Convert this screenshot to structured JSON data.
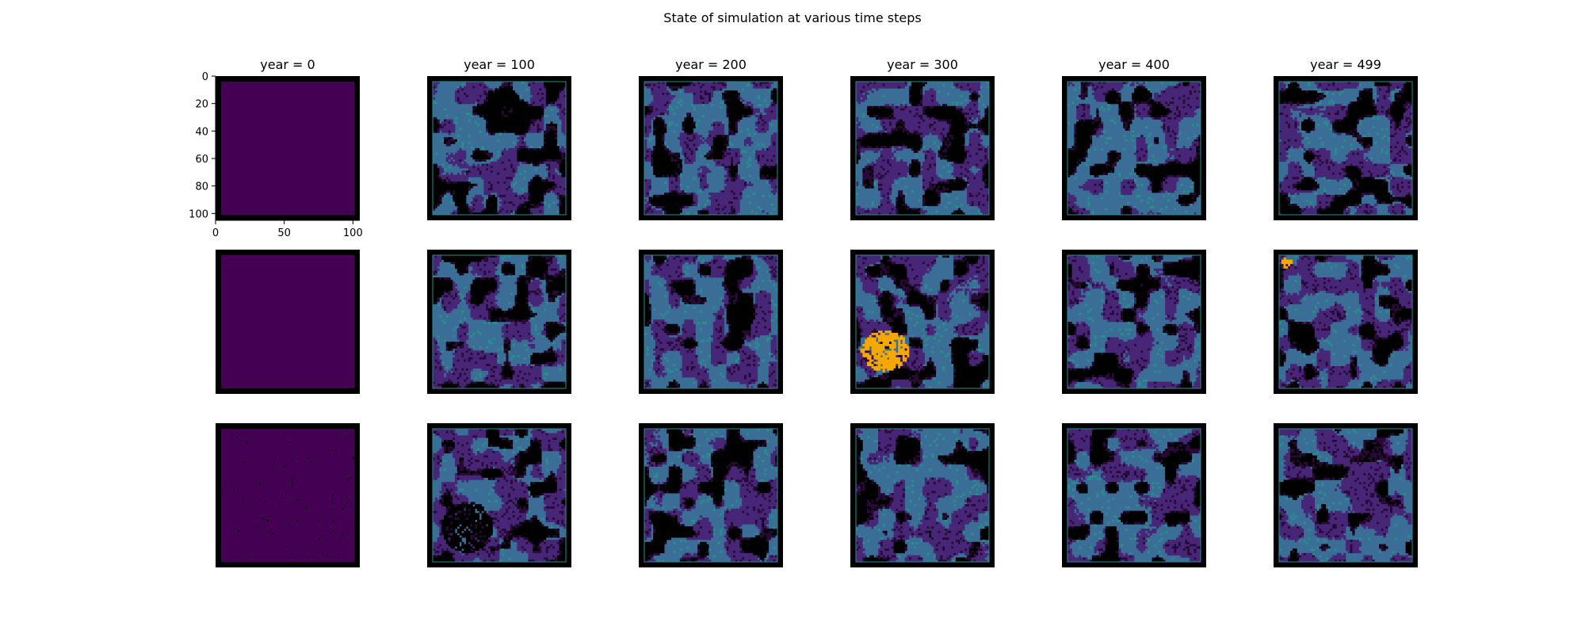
{
  "chart_data": {
    "type": "heatmap",
    "title": "State of simulation at various time steps",
    "panel_titles": [
      "year = 0",
      "year = 100",
      "year = 200",
      "year = 300",
      "year = 400",
      "year = 499"
    ],
    "years": [
      0,
      100,
      200,
      300,
      400,
      499
    ],
    "rows": 3,
    "grid_size": 105,
    "axes": {
      "x_ticks": [
        "0",
        "50",
        "100"
      ],
      "y_ticks": [
        "0",
        "20",
        "40",
        "60",
        "80",
        "100"
      ],
      "xlim": [
        0,
        105
      ],
      "ylim": [
        105,
        0
      ]
    },
    "colors": {
      "border": "#000000",
      "empty": "#440154",
      "blue": "#3b6e96",
      "purple": "#482677",
      "dark": "#2a0838",
      "black": "#000000",
      "orange": "#f6a800",
      "teal": "#2a8c8c"
    },
    "panels": [
      {
        "row": 0,
        "year": 0,
        "state": "uniform"
      },
      {
        "row": 0,
        "year": 100,
        "state": "mixed"
      },
      {
        "row": 0,
        "year": 200,
        "state": "mixed"
      },
      {
        "row": 0,
        "year": 300,
        "state": "mixed"
      },
      {
        "row": 0,
        "year": 400,
        "state": "mixed"
      },
      {
        "row": 0,
        "year": 499,
        "state": "mixed"
      },
      {
        "row": 1,
        "year": 0,
        "state": "uniform"
      },
      {
        "row": 1,
        "year": 100,
        "state": "mixed"
      },
      {
        "row": 1,
        "year": 200,
        "state": "mixed"
      },
      {
        "row": 1,
        "year": 300,
        "state": "mixed",
        "highlight": "orange-patch-lower-left"
      },
      {
        "row": 1,
        "year": 400,
        "state": "mixed"
      },
      {
        "row": 1,
        "year": 499,
        "state": "mixed",
        "highlight": "orange-patch-top-left-small"
      },
      {
        "row": 2,
        "year": 0,
        "state": "uniform-speckled"
      },
      {
        "row": 2,
        "year": 100,
        "state": "mixed",
        "highlight": "black-patch-lower-left"
      },
      {
        "row": 2,
        "year": 200,
        "state": "mixed"
      },
      {
        "row": 2,
        "year": 300,
        "state": "mixed"
      },
      {
        "row": 2,
        "year": 400,
        "state": "mixed"
      },
      {
        "row": 2,
        "year": 499,
        "state": "mixed"
      }
    ]
  }
}
